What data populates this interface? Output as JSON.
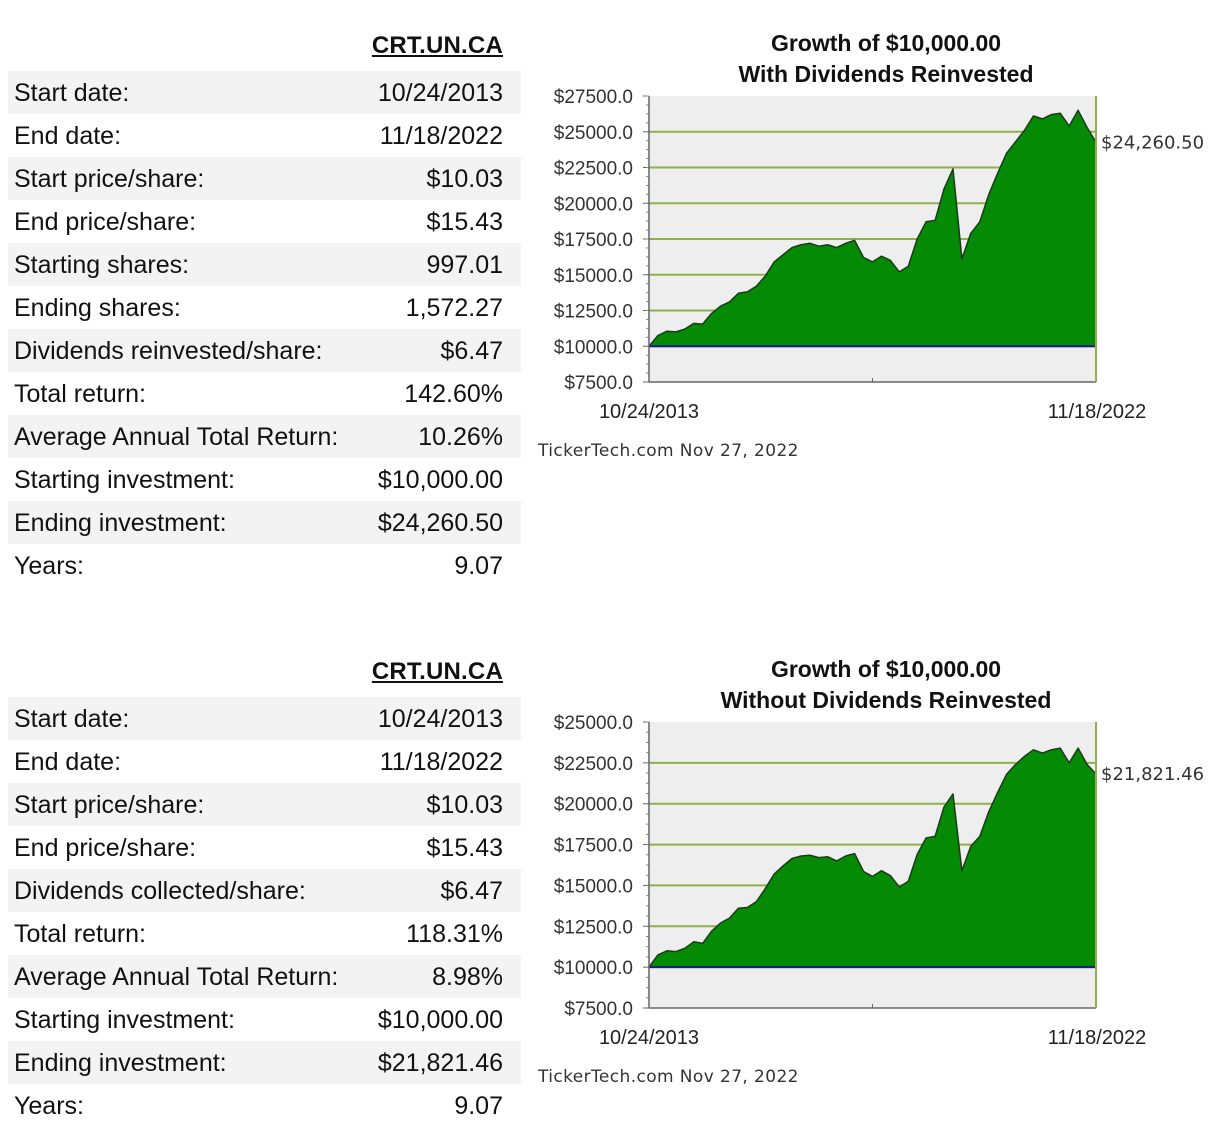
{
  "panels": [
    {
      "ticker": "CRT.UN.CA",
      "rows": [
        {
          "label": "Start date:",
          "value": "10/24/2013"
        },
        {
          "label": "End date:",
          "value": "11/18/2022"
        },
        {
          "label": "Start price/share:",
          "value": "$10.03"
        },
        {
          "label": "End price/share:",
          "value": "$15.43"
        },
        {
          "label": "Starting shares:",
          "value": "997.01"
        },
        {
          "label": "Ending shares:",
          "value": "1,572.27"
        },
        {
          "label": "Dividends reinvested/share:",
          "value": "$6.47"
        },
        {
          "label": "Total return:",
          "value": "142.60%"
        },
        {
          "label": "Average Annual Total Return:",
          "value": "10.26%"
        },
        {
          "label": "Starting investment:",
          "value": "$10,000.00"
        },
        {
          "label": "Ending investment:",
          "value": "$24,260.50"
        },
        {
          "label": "Years:",
          "value": "9.07"
        }
      ],
      "chart_title_line1": "Growth of $10,000.00",
      "chart_title_line2": "With Dividends Reinvested",
      "end_value_label": "$24,260.50",
      "start_date_label": "10/24/2013",
      "end_date_label": "11/18/2022",
      "credit": "TickerTech.com  Nov 27, 2022"
    },
    {
      "ticker": "CRT.UN.CA",
      "rows": [
        {
          "label": "Start date:",
          "value": "10/24/2013"
        },
        {
          "label": "End date:",
          "value": "11/18/2022"
        },
        {
          "label": "Start price/share:",
          "value": "$10.03"
        },
        {
          "label": "End price/share:",
          "value": "$15.43"
        },
        {
          "label": "Dividends collected/share:",
          "value": "$6.47"
        },
        {
          "label": "Total return:",
          "value": "118.31%"
        },
        {
          "label": "Average Annual Total Return:",
          "value": "8.98%"
        },
        {
          "label": "Starting investment:",
          "value": "$10,000.00"
        },
        {
          "label": "Ending investment:",
          "value": "$21,821.46"
        },
        {
          "label": "Years:",
          "value": "9.07"
        }
      ],
      "chart_title_line1": "Growth of $10,000.00",
      "chart_title_line2": "Without Dividends Reinvested",
      "end_value_label": "$21,821.46",
      "start_date_label": "10/24/2013",
      "end_date_label": "11/18/2022",
      "credit": "TickerTech.com  Nov 27, 2022"
    }
  ],
  "colors": {
    "fill": "#058a05",
    "baseline": "#1a1a8c",
    "grid": "#8fb04a",
    "plot_bg": "#eeeeee"
  },
  "chart_data": [
    {
      "type": "area",
      "title": "Growth of $10,000.00 With Dividends Reinvested",
      "ylim": [
        7500,
        27500
      ],
      "yticks": [
        "$27500.0",
        "$25000.0",
        "$22500.0",
        "$20000.0",
        "$17500.0",
        "$15000.0",
        "$12500.0",
        "$10000.0",
        "$7500.0"
      ],
      "x_start": "10/24/2013",
      "x_end": "11/18/2022",
      "baseline": 10000,
      "series": [
        {
          "values": [
            10000,
            10750,
            11050,
            11000,
            11200,
            11600,
            11550,
            12300,
            12800,
            13100,
            13700,
            13800,
            14200,
            14900,
            15900,
            16400,
            16900,
            17100,
            17200,
            17000,
            17100,
            16900,
            17200,
            17400,
            16200,
            15900,
            16300,
            16000,
            15200,
            15600,
            17500,
            18700,
            18800,
            21000,
            22400,
            16100,
            17900,
            18700,
            20600,
            22100,
            23500,
            24300,
            25100,
            26100,
            25900,
            26200,
            26300,
            25400,
            26500,
            25300,
            24260.5
          ]
        }
      ]
    },
    {
      "type": "area",
      "title": "Growth of $10,000.00 Without Dividends Reinvested",
      "ylim": [
        7500,
        25000
      ],
      "yticks": [
        "$25000.0",
        "$22500.0",
        "$20000.0",
        "$17500.0",
        "$15000.0",
        "$12500.0",
        "$10000.0",
        "$7500.0"
      ],
      "x_start": "10/24/2013",
      "x_end": "11/18/2022",
      "baseline": 10000,
      "series": [
        {
          "values": [
            10000,
            10750,
            11000,
            10950,
            11150,
            11550,
            11450,
            12200,
            12700,
            13000,
            13600,
            13650,
            14000,
            14800,
            15700,
            16200,
            16650,
            16800,
            16850,
            16700,
            16750,
            16500,
            16800,
            16950,
            15850,
            15550,
            15900,
            15600,
            14900,
            15250,
            16900,
            17900,
            18000,
            19800,
            20600,
            15900,
            17400,
            18000,
            19500,
            20700,
            21800,
            22400,
            22900,
            23300,
            23100,
            23300,
            23400,
            22500,
            23400,
            22400,
            21821.46
          ]
        }
      ]
    }
  ]
}
